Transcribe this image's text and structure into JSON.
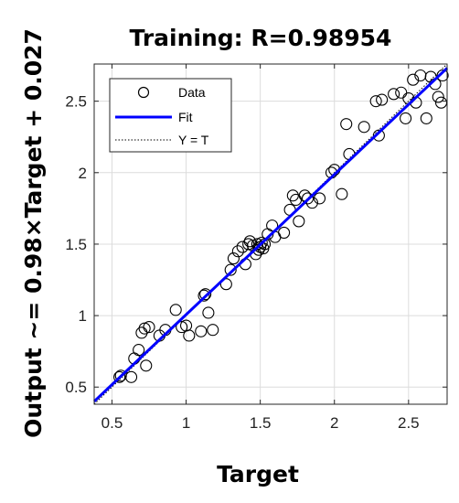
{
  "chart_data": {
    "type": "scatter",
    "title": "Training: R=0.98954",
    "xlabel": "Target",
    "ylabel": "Output ~= 0.98×Target + 0.027",
    "xlim": [
      0.38,
      2.76
    ],
    "ylim": [
      0.38,
      2.76
    ],
    "xticks": [
      0.5,
      1,
      1.5,
      2,
      2.5
    ],
    "yticks": [
      0.5,
      1,
      1.5,
      2,
      2.5
    ],
    "xtick_labels": [
      "0.5",
      "1",
      "1.5",
      "2",
      "2.5"
    ],
    "ytick_labels": [
      "0.5",
      "1",
      "1.5",
      "2",
      "2.5"
    ],
    "grid": true,
    "legend": {
      "position": "top-left",
      "entries": [
        {
          "label": "Data",
          "style": "marker"
        },
        {
          "label": "Fit",
          "style": "line"
        },
        {
          "label": "Y = T",
          "style": "dotted"
        }
      ]
    },
    "fit": {
      "slope": 0.98,
      "intercept": 0.027,
      "color": "#0000ff"
    },
    "identity_line": {
      "slope": 1,
      "intercept": 0,
      "color": "#000000"
    },
    "series": [
      {
        "name": "Data",
        "points": [
          [
            0.55,
            0.57
          ],
          [
            0.56,
            0.58
          ],
          [
            0.63,
            0.57
          ],
          [
            0.65,
            0.7
          ],
          [
            0.68,
            0.76
          ],
          [
            0.7,
            0.88
          ],
          [
            0.72,
            0.91
          ],
          [
            0.73,
            0.65
          ],
          [
            0.75,
            0.92
          ],
          [
            0.82,
            0.86
          ],
          [
            0.86,
            0.9
          ],
          [
            0.93,
            1.04
          ],
          [
            0.97,
            0.92
          ],
          [
            1.0,
            0.93
          ],
          [
            1.02,
            0.86
          ],
          [
            1.1,
            0.89
          ],
          [
            1.12,
            1.14
          ],
          [
            1.13,
            1.15
          ],
          [
            1.15,
            1.02
          ],
          [
            1.18,
            0.9
          ],
          [
            1.27,
            1.22
          ],
          [
            1.3,
            1.32
          ],
          [
            1.32,
            1.4
          ],
          [
            1.35,
            1.45
          ],
          [
            1.38,
            1.48
          ],
          [
            1.4,
            1.36
          ],
          [
            1.42,
            1.5
          ],
          [
            1.43,
            1.52
          ],
          [
            1.45,
            1.49
          ],
          [
            1.47,
            1.43
          ],
          [
            1.48,
            1.5
          ],
          [
            1.49,
            1.46
          ],
          [
            1.5,
            1.48
          ],
          [
            1.51,
            1.51
          ],
          [
            1.52,
            1.47
          ],
          [
            1.53,
            1.5
          ],
          [
            1.55,
            1.57
          ],
          [
            1.58,
            1.63
          ],
          [
            1.6,
            1.55
          ],
          [
            1.66,
            1.58
          ],
          [
            1.7,
            1.74
          ],
          [
            1.72,
            1.84
          ],
          [
            1.74,
            1.81
          ],
          [
            1.76,
            1.66
          ],
          [
            1.8,
            1.84
          ],
          [
            1.82,
            1.82
          ],
          [
            1.85,
            1.79
          ],
          [
            1.9,
            1.82
          ],
          [
            1.98,
            2.0
          ],
          [
            2.0,
            2.02
          ],
          [
            2.05,
            1.85
          ],
          [
            2.08,
            2.34
          ],
          [
            2.1,
            2.13
          ],
          [
            2.2,
            2.32
          ],
          [
            2.28,
            2.5
          ],
          [
            2.3,
            2.26
          ],
          [
            2.32,
            2.51
          ],
          [
            2.4,
            2.55
          ],
          [
            2.45,
            2.56
          ],
          [
            2.48,
            2.38
          ],
          [
            2.5,
            2.52
          ],
          [
            2.53,
            2.65
          ],
          [
            2.55,
            2.49
          ],
          [
            2.58,
            2.68
          ],
          [
            2.62,
            2.38
          ],
          [
            2.65,
            2.67
          ],
          [
            2.68,
            2.62
          ],
          [
            2.7,
            2.53
          ],
          [
            2.72,
            2.49
          ],
          [
            2.73,
            2.68
          ]
        ]
      }
    ]
  }
}
